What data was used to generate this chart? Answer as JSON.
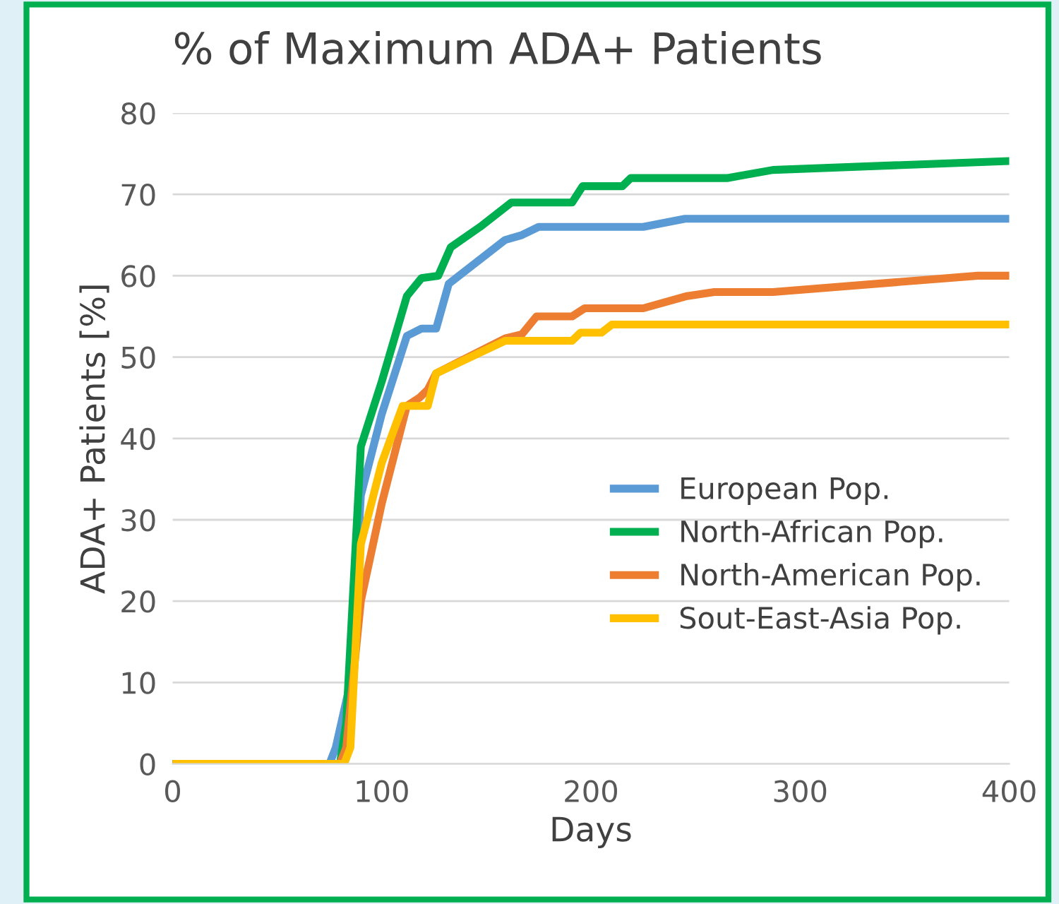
{
  "chart_data": {
    "type": "line",
    "title": "% of Maximum ADA+ Patients",
    "xlabel": "Days",
    "ylabel": "ADA+ Patients [%]",
    "xlim": [
      0,
      400
    ],
    "xticks": [
      0,
      100,
      200,
      300,
      400
    ],
    "ylim": [
      0,
      80
    ],
    "yticks": [
      0,
      10,
      20,
      30,
      40,
      50,
      60,
      70,
      80
    ],
    "grid": "y",
    "legend": "right",
    "line_style": "solid",
    "marker": "none",
    "series": [
      {
        "name": "European Pop.",
        "color": "#5b9bd5",
        "x": [
          0,
          75,
          78,
          85,
          90,
          100,
          112,
          119,
          126,
          132,
          159,
          167,
          175,
          225,
          245,
          400
        ],
        "values": [
          0,
          0,
          2,
          10,
          33,
          43,
          52.6,
          53.5,
          53.5,
          59,
          64.4,
          65,
          66,
          66,
          67,
          67
        ]
      },
      {
        "name": "North-African Pop.",
        "color": "#00b050",
        "x": [
          0,
          80,
          83,
          90,
          100,
          112,
          119,
          127,
          133,
          147,
          162,
          191,
          196,
          215,
          219,
          265,
          287,
          400
        ],
        "values": [
          0,
          0,
          5,
          39,
          47,
          57.5,
          59.7,
          60,
          63.5,
          66,
          69,
          69,
          71,
          71,
          72,
          72,
          73,
          74.1
        ]
      },
      {
        "name": "North-American Pop.",
        "color": "#ed7d31",
        "x": [
          0,
          80,
          83,
          90,
          100,
          112,
          118,
          122,
          126,
          159,
          167,
          174,
          191,
          197,
          225,
          246,
          259,
          287,
          385,
          400
        ],
        "values": [
          0,
          0,
          2,
          20,
          32,
          44,
          45,
          46,
          48,
          52.3,
          52.8,
          55,
          55,
          56,
          56,
          57.5,
          58,
          58,
          60,
          60
        ]
      },
      {
        "name": "Sout-East-Asia Pop.",
        "color": "#ffc000",
        "x": [
          0,
          82,
          85,
          90,
          100,
          110,
          122,
          126,
          159,
          191,
          195,
          205,
          210,
          400
        ],
        "values": [
          0,
          0,
          2,
          27,
          37,
          44,
          44,
          48,
          52,
          52,
          53,
          53,
          54,
          54
        ]
      }
    ]
  }
}
